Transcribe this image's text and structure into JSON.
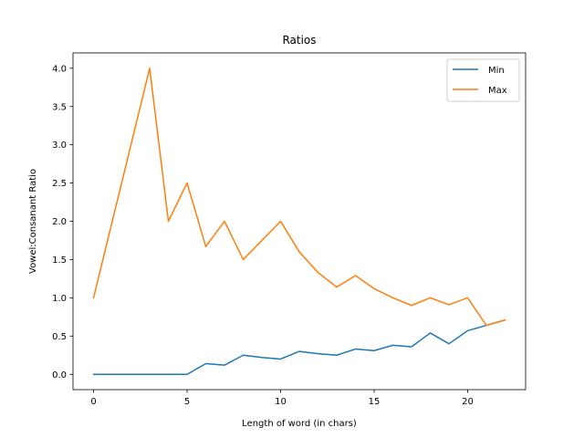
{
  "chart_data": {
    "type": "line",
    "title": "Ratios",
    "xlabel": "Length of word (in chars)",
    "ylabel": "Vowel:Consanant Ratio",
    "xlim": [
      -1.1,
      23.1
    ],
    "ylim": [
      -0.2,
      4.2
    ],
    "xticks": [
      0,
      5,
      10,
      15,
      20
    ],
    "yticks": [
      0.0,
      0.5,
      1.0,
      1.5,
      2.0,
      2.5,
      3.0,
      3.5,
      4.0
    ],
    "xtick_labels": [
      "0",
      "5",
      "10",
      "15",
      "20"
    ],
    "ytick_labels": [
      "0.0",
      "0.5",
      "1.0",
      "1.5",
      "2.0",
      "2.5",
      "3.0",
      "3.5",
      "4.0"
    ],
    "grid": false,
    "legend": "top-right",
    "x": [
      0,
      1,
      2,
      3,
      4,
      5,
      6,
      7,
      8,
      9,
      10,
      11,
      12,
      13,
      14,
      15,
      16,
      17,
      18,
      19,
      20,
      21,
      22
    ],
    "series": [
      {
        "name": "Min",
        "color": "#1f77b4",
        "values": [
          0.0,
          0.0,
          0.0,
          0.0,
          0.0,
          0.0,
          0.14,
          0.12,
          0.25,
          0.22,
          0.2,
          0.3,
          0.27,
          0.25,
          0.33,
          0.31,
          0.38,
          0.36,
          0.54,
          0.4,
          0.57,
          0.64,
          0.71
        ]
      },
      {
        "name": "Max",
        "color": "#ff7f0e",
        "values": [
          1.0,
          2.0,
          3.0,
          4.0,
          2.0,
          2.5,
          1.67,
          2.0,
          1.5,
          1.75,
          2.0,
          1.6,
          1.33,
          1.14,
          1.29,
          1.12,
          1.0,
          0.9,
          1.0,
          0.91,
          1.0,
          0.64,
          0.71
        ]
      }
    ]
  }
}
